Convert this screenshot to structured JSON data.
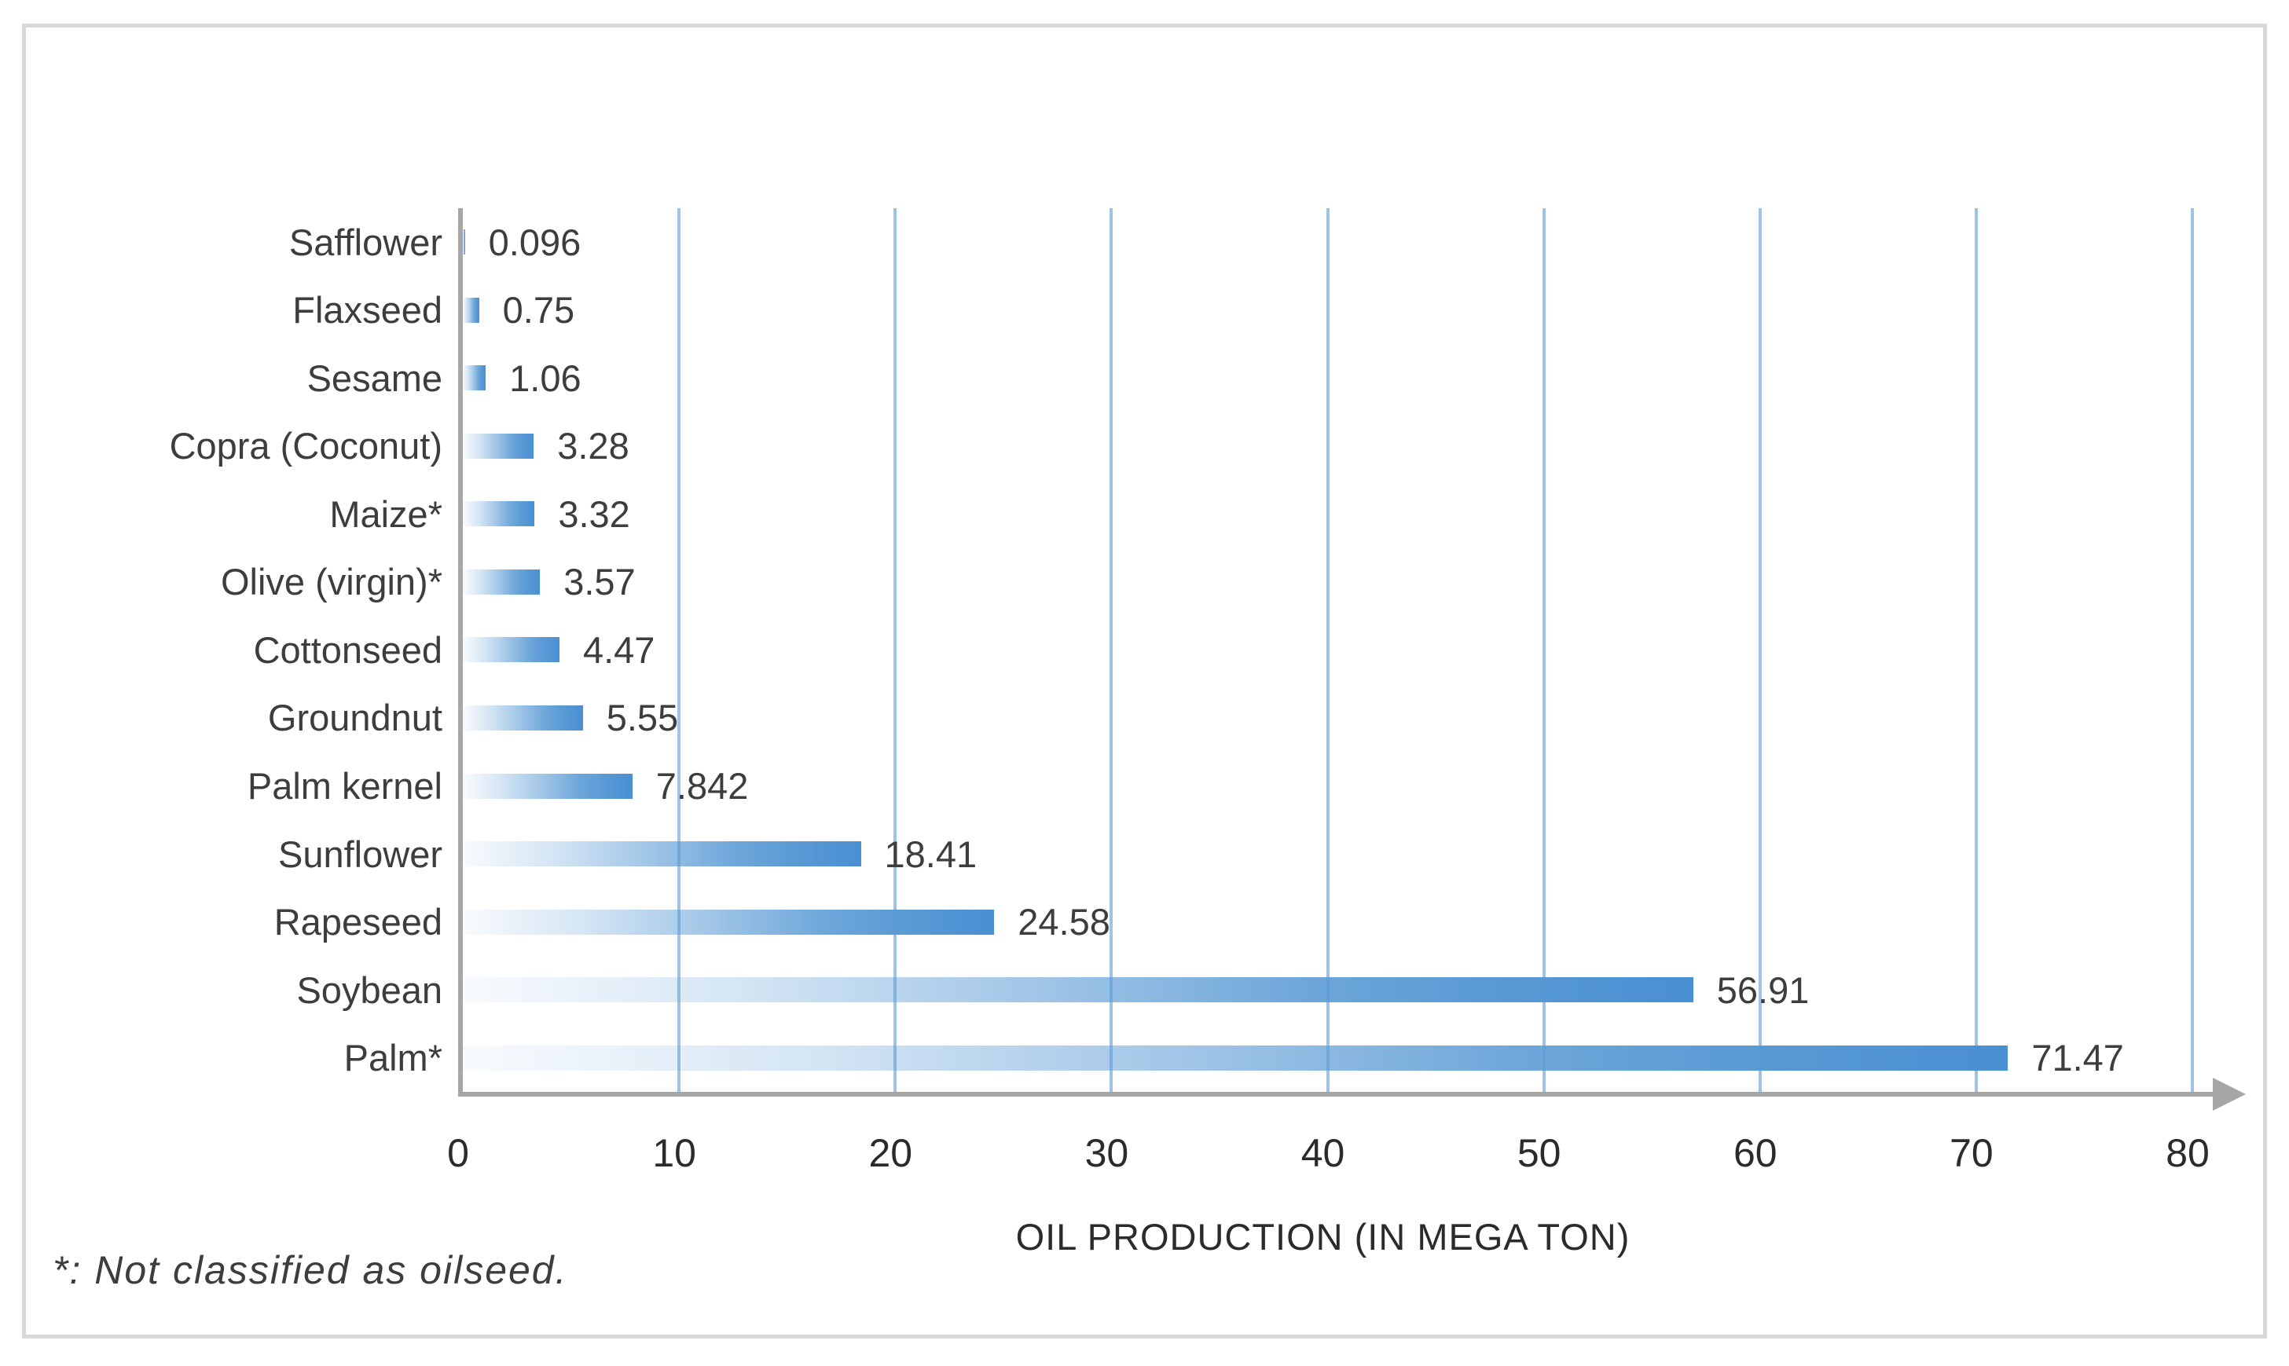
{
  "chart_data": {
    "type": "bar",
    "orientation": "horizontal",
    "title": "",
    "xlabel": "OIL PRODUCTION (IN MEGA TON)",
    "ylabel": "",
    "xlim": [
      0,
      80
    ],
    "x_ticks": [
      0,
      10,
      20,
      30,
      40,
      50,
      60,
      70,
      80
    ],
    "grid": "vertical-gridlines-every-10",
    "legend": "none",
    "categories": [
      "Safflower",
      "Flaxseed",
      "Sesame",
      "Copra (Coconut)",
      "Maize*",
      "Olive (virgin)*",
      "Cottonseed",
      "Groundnut",
      "Palm kernel",
      "Sunflower",
      "Rapeseed",
      "Soybean",
      "Palm*"
    ],
    "values": [
      0.096,
      0.75,
      1.06,
      3.28,
      3.32,
      3.57,
      4.47,
      5.55,
      7.842,
      18.41,
      24.58,
      56.91,
      71.47
    ],
    "value_labels": [
      "0.096",
      "0.75",
      "1.06",
      "3.28",
      "3.32",
      "3.57",
      "4.47",
      "5.55",
      "7.842",
      "18.41",
      "24.58",
      "56.91",
      "71.47"
    ],
    "footnote": "*: Not classified as oilseed.",
    "colors": {
      "bar_main": "#5b9bd5",
      "bar_gradient_end": "#4a8fd3",
      "gridline": "#9dc3e6",
      "axis_line": "#a6a6a6",
      "frame_border": "#d9d9d9",
      "label_text": "#3d3d3d",
      "tick_text": "#2b2b2b"
    }
  }
}
